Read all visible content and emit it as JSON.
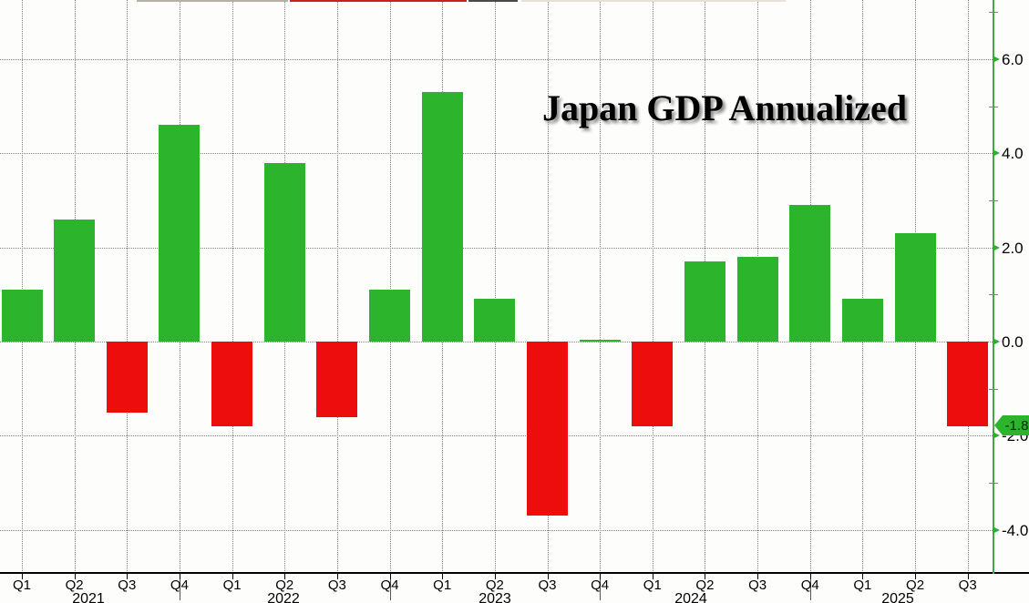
{
  "chart_data": {
    "type": "bar",
    "title": "Japan GDP Annualized",
    "xlabel": "",
    "ylabel": "",
    "grid": true,
    "legend_position": "none",
    "categories": [
      "Q1 2021",
      "Q2 2021",
      "Q3 2021",
      "Q4 2021",
      "Q1 2022",
      "Q2 2022",
      "Q3 2022",
      "Q4 2022",
      "Q1 2023",
      "Q2 2023",
      "Q3 2023",
      "Q4 2023",
      "Q1 2024",
      "Q2 2024",
      "Q3 2024",
      "Q4 2024",
      "Q1 2025",
      "Q2 2025",
      "Q3 2025"
    ],
    "quarter_tick_labels": [
      "Q1",
      "Q2",
      "Q3",
      "Q4",
      "Q1",
      "Q2",
      "Q3",
      "Q4",
      "Q1",
      "Q2",
      "Q3",
      "Q4",
      "Q1",
      "Q2",
      "Q3",
      "Q4",
      "Q1",
      "Q2",
      "Q3"
    ],
    "year_labels": [
      "2021",
      "2022",
      "2023",
      "2024",
      "2025"
    ],
    "values": [
      1.1,
      2.6,
      -1.5,
      4.6,
      -1.8,
      3.8,
      -1.6,
      1.1,
      5.3,
      0.9,
      -3.7,
      0.0,
      -1.8,
      1.7,
      1.8,
      2.9,
      0.9,
      2.3,
      -1.8
    ],
    "ytick_labels": [
      "6.0",
      "4.0",
      "2.0",
      "0.0",
      "-2.0",
      "-4.0"
    ],
    "ytick_values": [
      6,
      4,
      2,
      0,
      -2,
      -4
    ],
    "minor_ytick_values": [
      7,
      5,
      3,
      1,
      -1,
      -3
    ],
    "ylim": [
      -4.9,
      7.25
    ],
    "last_value": -1.8,
    "last_value_label": "-1.8",
    "colors": {
      "positive_bar": "#2db42d",
      "negative_bar": "#ee0d0d",
      "green_axis": "#46a846",
      "black_axis": "#000000",
      "gridline": "#858585",
      "badge_bg": "#2db42d",
      "badge_text": "#072807",
      "title_text": "#000000"
    }
  }
}
